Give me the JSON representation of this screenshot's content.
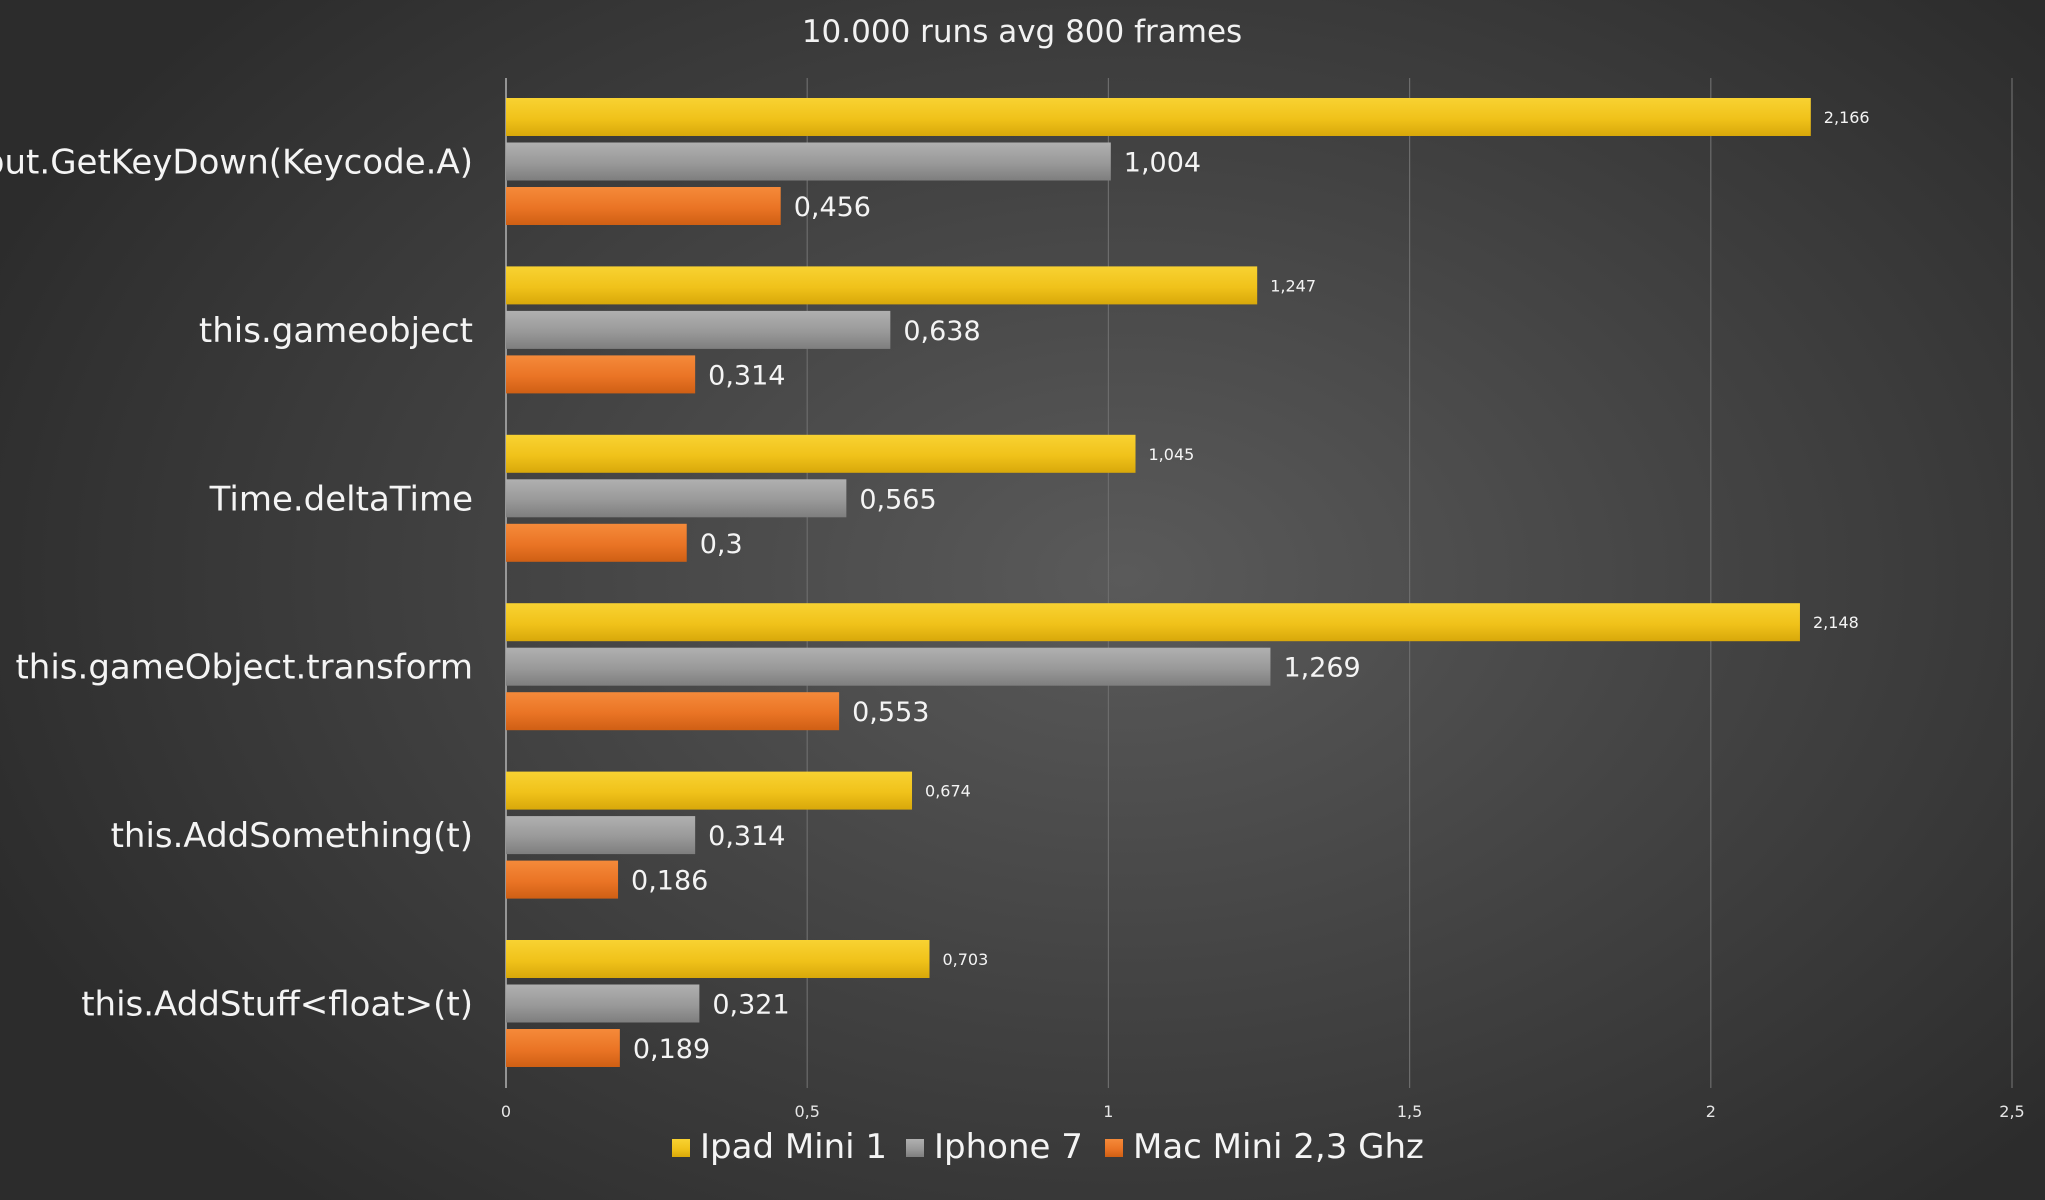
{
  "chart_data": {
    "type": "bar",
    "orientation": "horizontal",
    "title": "10.000 runs avg 800 frames",
    "categories": [
      "Input.GetKeyDown(Keycode.A)",
      "this.gameobject",
      "Time.deltaTime",
      "this.gameObject.transform",
      "this.AddSomething(t)",
      "this.AddStuff<float>(t)"
    ],
    "series": [
      {
        "name": "Ipad Mini 1",
        "color": "#f2c318",
        "values": [
          2.166,
          1.247,
          1.045,
          2.148,
          0.674,
          0.703
        ],
        "labels": [
          "2,166",
          "1,247",
          "1,045",
          "2,148",
          "0,674",
          "0,703"
        ]
      },
      {
        "name": "Iphone 7",
        "color": "#9a9a9a",
        "values": [
          1.004,
          0.638,
          0.565,
          1.269,
          0.314,
          0.321
        ],
        "labels": [
          "1,004",
          "0,638",
          "0,565",
          "1,269",
          "0,314",
          "0,321"
        ]
      },
      {
        "name": "Mac Mini 2,3 Ghz",
        "color": "#ea7425",
        "values": [
          0.456,
          0.314,
          0.3,
          0.553,
          0.186,
          0.189
        ],
        "labels": [
          "0,456",
          "0,314",
          "0,3",
          "0,553",
          "0,186",
          "0,189"
        ]
      }
    ],
    "xlim": [
      0,
      2.5
    ],
    "xticks": [
      0,
      0.5,
      1,
      1.5,
      2,
      2.5
    ],
    "xtick_labels": [
      "0",
      "0,5",
      "1",
      "1,5",
      "2",
      "2,5"
    ],
    "grid": true,
    "legend_position": "bottom"
  }
}
